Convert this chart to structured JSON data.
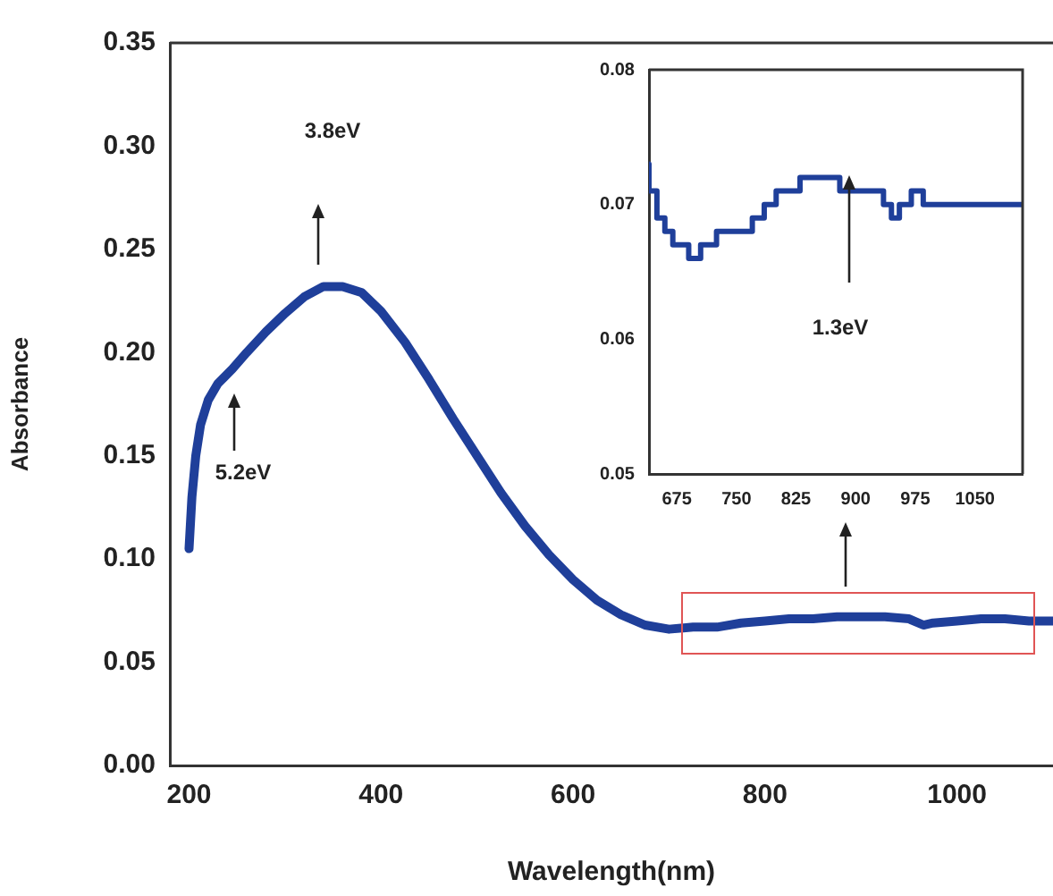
{
  "chart_data": [
    {
      "type": "line",
      "xlabel": "Wavelength(nm)",
      "ylabel": "Absorbance",
      "color": "#1f3f9a",
      "marker": "none",
      "x": [
        200,
        203,
        207,
        212,
        220,
        230,
        245,
        260,
        280,
        300,
        320,
        340,
        360,
        380,
        400,
        425,
        450,
        475,
        500,
        525,
        550,
        575,
        600,
        625,
        650,
        675,
        700,
        725,
        750,
        775,
        800,
        825,
        850,
        875,
        900,
        925,
        950,
        965,
        975,
        1000,
        1025,
        1050,
        1075,
        1100
      ],
      "values": [
        0.105,
        0.13,
        0.15,
        0.165,
        0.177,
        0.185,
        0.192,
        0.2,
        0.21,
        0.219,
        0.227,
        0.232,
        0.232,
        0.229,
        0.22,
        0.205,
        0.187,
        0.168,
        0.15,
        0.132,
        0.116,
        0.102,
        0.09,
        0.08,
        0.073,
        0.068,
        0.066,
        0.067,
        0.067,
        0.069,
        0.07,
        0.071,
        0.071,
        0.072,
        0.072,
        0.072,
        0.071,
        0.068,
        0.069,
        0.07,
        0.071,
        0.071,
        0.07,
        0.07
      ],
      "xlim": [
        180,
        1100
      ],
      "ylim": [
        0,
        0.35
      ],
      "xticks": [
        200,
        400,
        600,
        800,
        1000
      ],
      "yticks": [
        {
          "value": 0,
          "label": "0.00"
        },
        0.05,
        {
          "value": 0.1,
          "label": "0.10"
        },
        0.15,
        {
          "value": 0.2,
          "label": "0.20"
        },
        0.25,
        {
          "value": 0.3,
          "label": "0.30"
        },
        0.35
      ],
      "annotations": [
        "3.8eV",
        "5.2eV"
      ]
    },
    {
      "type": "step",
      "color": "#1f3f9a",
      "marker": "none",
      "x": [
        640,
        650,
        660,
        670,
        690,
        705,
        725,
        770,
        785,
        800,
        830,
        880,
        935,
        945,
        955,
        970,
        985,
        1075,
        1110
      ],
      "values": [
        0.073,
        0.071,
        0.069,
        0.068,
        0.067,
        0.066,
        0.067,
        0.068,
        0.069,
        0.07,
        0.071,
        0.072,
        0.071,
        0.07,
        0.069,
        0.07,
        0.071,
        0.07,
        0.07
      ],
      "xlim": [
        640,
        1110
      ],
      "ylim": [
        0.05,
        0.08
      ],
      "xticks": [
        675,
        750,
        825,
        900,
        975,
        1050
      ],
      "yticks": [
        0.05,
        0.06,
        0.07,
        0.08
      ],
      "annotations": [
        "1.3eV"
      ]
    }
  ]
}
